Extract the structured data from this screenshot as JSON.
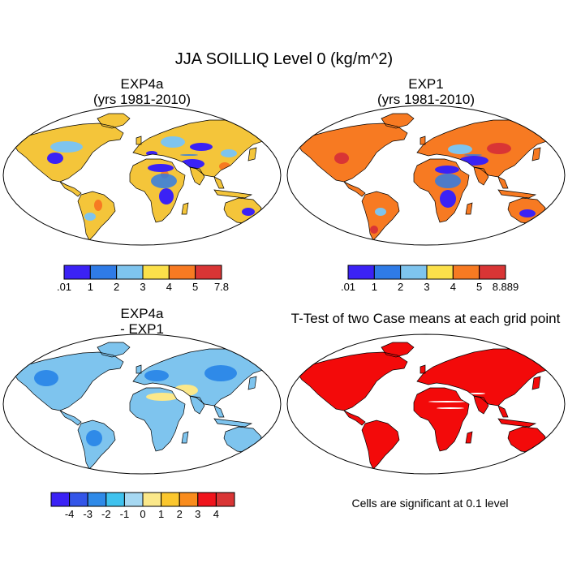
{
  "title": "JJA SOILLIQ Level 0 (kg/m^2)",
  "panels": [
    {
      "id": "p1",
      "title_line1": "EXP4a",
      "title_line2": "(yrs 1981-2010)"
    },
    {
      "id": "p2",
      "title_line1": "EXP1",
      "title_line2": "(yrs 1981-2010)"
    },
    {
      "id": "p3",
      "title_line1": "EXP4a",
      "title_line2": " - EXP1"
    },
    {
      "id": "p4",
      "title_line1": "T-Test of two Case means at each grid point",
      "title_line2": ""
    }
  ],
  "significance_note": "Cells are significant at 0.1 level",
  "colorbars": [
    {
      "id": "cb1",
      "colors": [
        "#3b22f5",
        "#2f7be6",
        "#7ec4ee",
        "#fbe04a",
        "#f77a22",
        "#d93535"
      ],
      "labels": [
        ".01",
        "1",
        "2",
        "3",
        "4",
        "5",
        "7.8"
      ]
    },
    {
      "id": "cb2",
      "colors": [
        "#3b22f5",
        "#2f7be6",
        "#7ec4ee",
        "#fbe04a",
        "#f77a22",
        "#d93535"
      ],
      "labels": [
        ".01",
        "1",
        "2",
        "3",
        "4",
        "5",
        "8.889"
      ]
    },
    {
      "id": "cb3",
      "colors": [
        "#3b22f5",
        "#3355e8",
        "#2f8ae8",
        "#3fc2ee",
        "#a6d8f2",
        "#fbe88a",
        "#fbc72e",
        "#f98c1d",
        "#f0141c",
        "#d93535"
      ],
      "labels": [
        "-4",
        "-3",
        "-2",
        "-1",
        "0",
        "1",
        "2",
        "3",
        "4"
      ]
    }
  ],
  "map_palettes": {
    "p1": {
      "base": "#f4c53a",
      "wet": "#f77a22",
      "veryWet": "#d93535",
      "dry": "#3b22f5",
      "semiDry": "#2f7be6",
      "mid": "#7ec4ee"
    },
    "p2": {
      "base": "#f77a22",
      "wet": "#d93535",
      "veryWet": "#d93535",
      "dry": "#3b22f5",
      "semiDry": "#2f7be6",
      "mid": "#7ec4ee"
    },
    "p3": {
      "base": "#7ec4ee",
      "wet": "#a6d8f2",
      "veryWet": "#a6d8f2",
      "dry": "#fbe88a",
      "semiDry": "#3fc2ee",
      "mid": "#2f8ae8"
    },
    "p4": {
      "base": "#f30a0a",
      "wet": "#f30a0a",
      "veryWet": "#f30a0a",
      "dry": "#ffffff",
      "semiDry": "#f30a0a",
      "mid": "#f30a0a"
    }
  }
}
